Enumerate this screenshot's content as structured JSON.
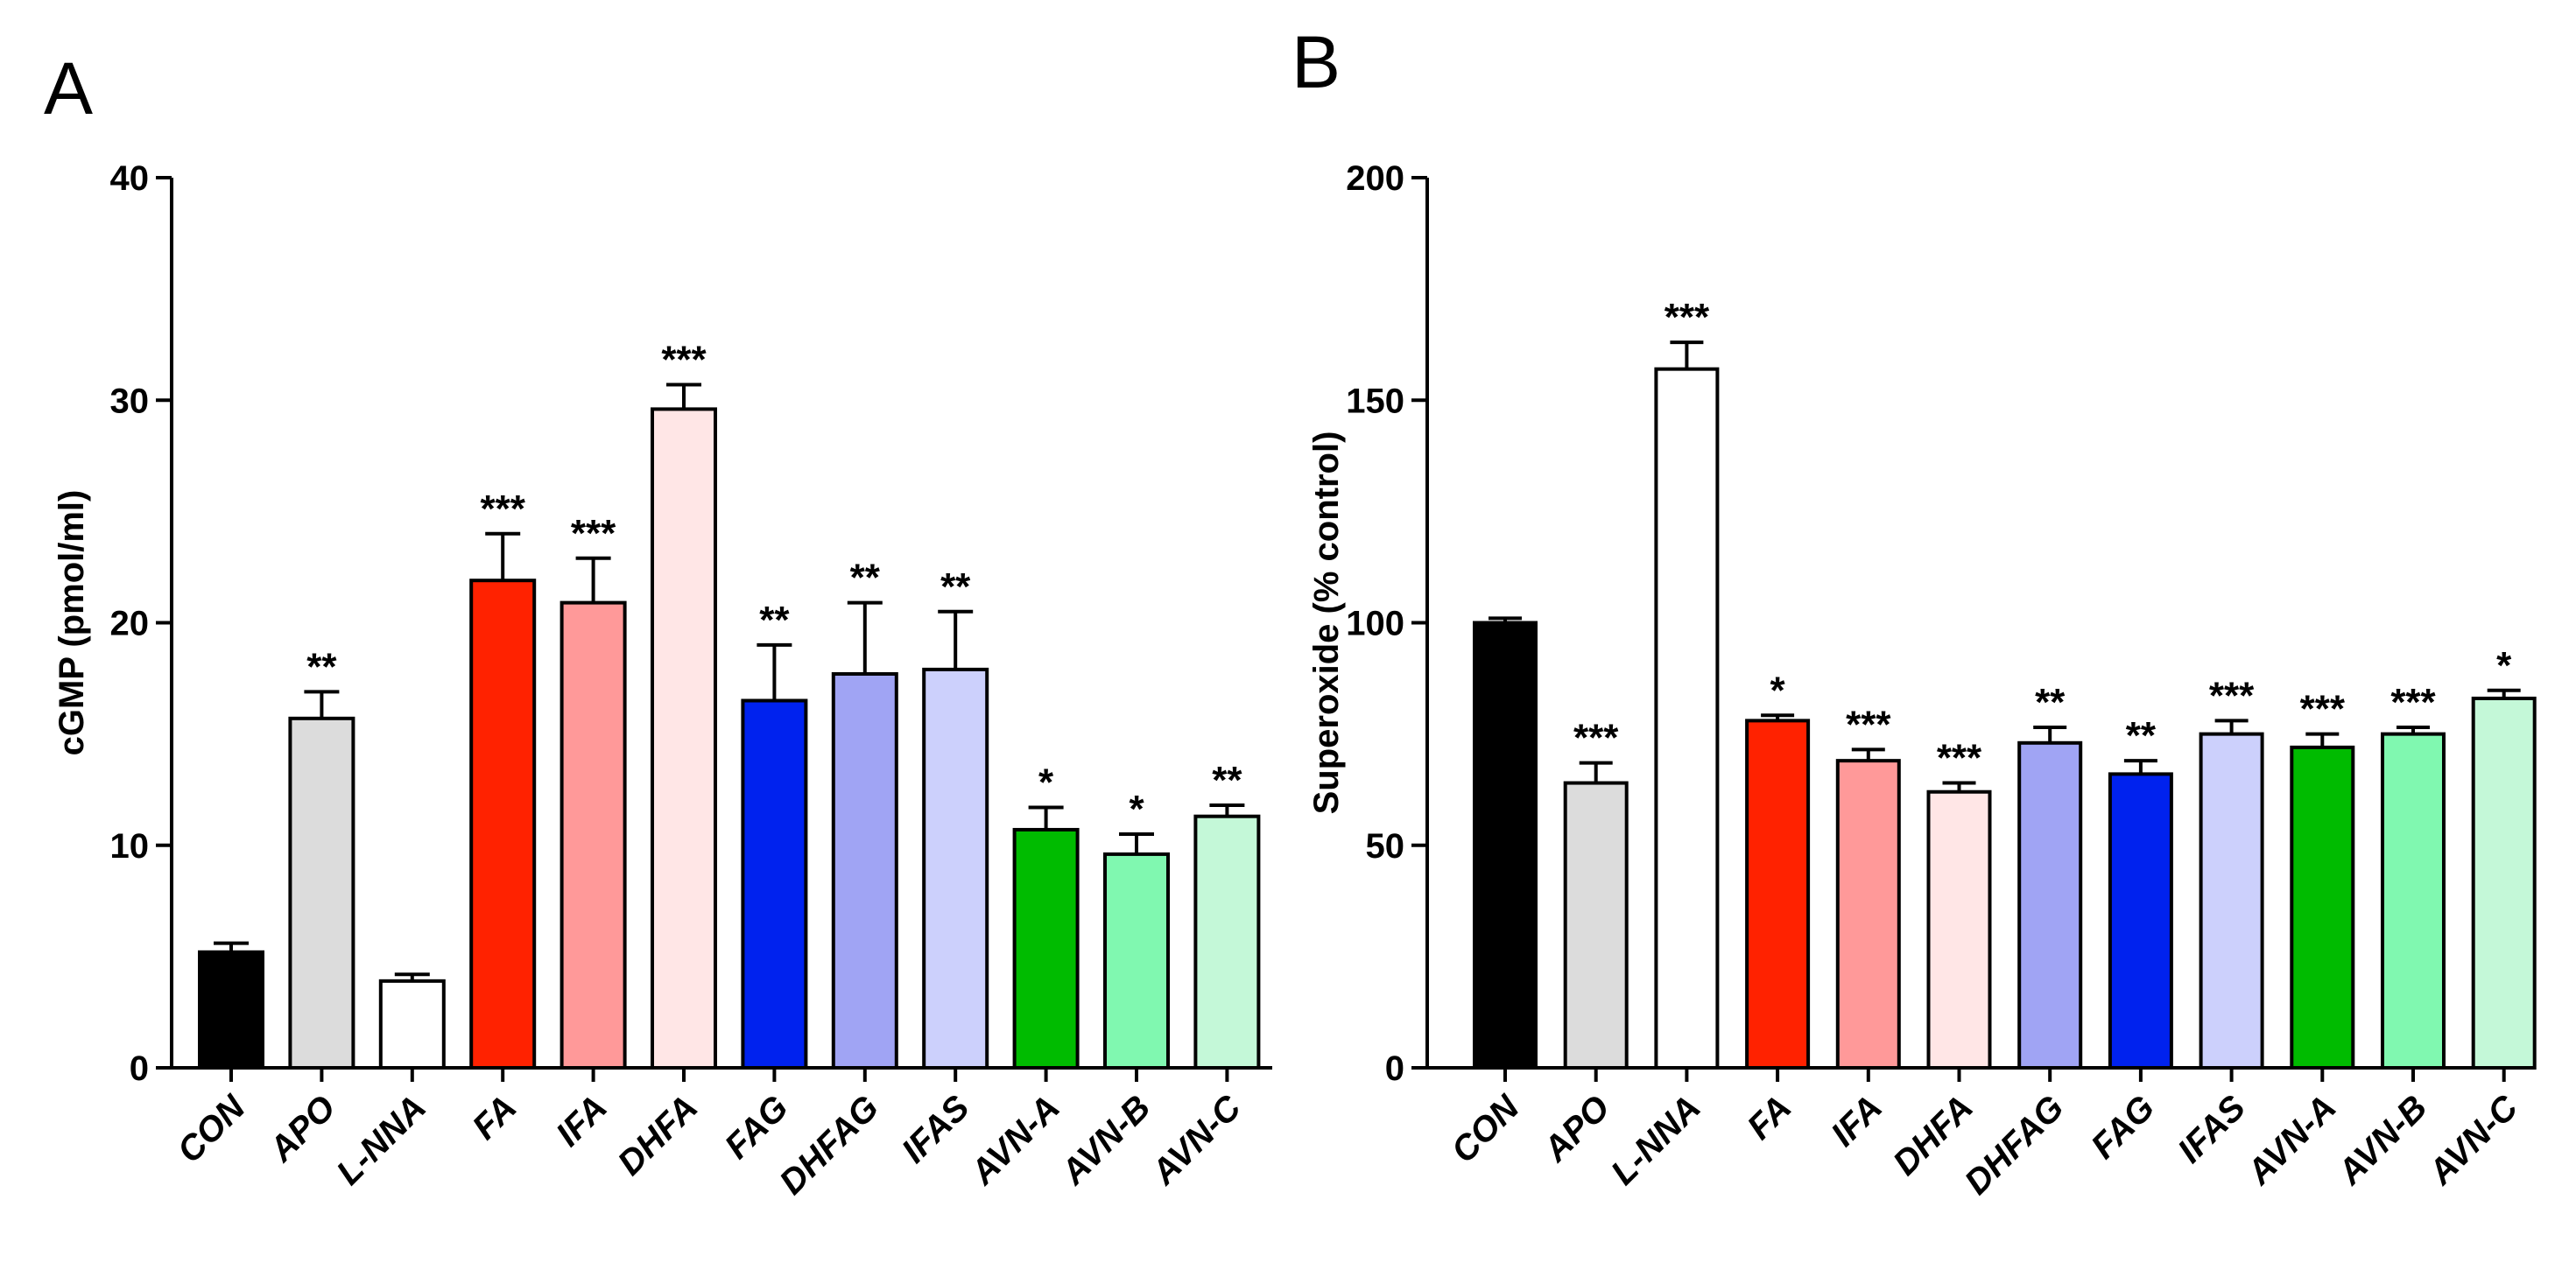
{
  "colors": {
    "CON": "#000000",
    "APO": "#dcdcdc",
    "L-NNA": "#ffffff",
    "FA": "#ff2200",
    "IFA": "#ff9999",
    "DHFA": "#ffe6e6",
    "FAG": "#0022ee",
    "DHFAG": "#a0a4f4",
    "IFAS": "#ccd0fc",
    "AVN-A": "#00bb00",
    "AVN-B": "#80f8b0",
    "AVN-C": "#c4f8d8"
  },
  "chart_data": [
    {
      "panel": "A",
      "type": "bar",
      "title": "",
      "xlabel": "",
      "ylabel": "cGMP (pmol/ml)",
      "ylim": [
        0,
        40
      ],
      "yticks": [
        0,
        10,
        20,
        30,
        40
      ],
      "categories": [
        "CON",
        "APO",
        "L-NNA",
        "FA",
        "IFA",
        "DHFA",
        "FAG",
        "DHFAG",
        "IFAS",
        "AVN-A",
        "AVN-B",
        "AVN-C"
      ],
      "values": [
        5.2,
        15.7,
        3.9,
        21.9,
        20.9,
        29.6,
        16.5,
        17.7,
        17.9,
        10.7,
        9.6,
        11.3
      ],
      "errors": [
        0.4,
        1.2,
        0.3,
        2.1,
        2.0,
        1.1,
        2.5,
        3.2,
        2.6,
        1.0,
        0.9,
        0.5
      ],
      "significance": [
        "",
        "**",
        "",
        "***",
        "***",
        "***",
        "**",
        "**",
        "**",
        "*",
        "*",
        "**"
      ]
    },
    {
      "panel": "B",
      "type": "bar",
      "title": "",
      "xlabel": "",
      "ylabel": "Superoxide (% control)",
      "ylim": [
        0,
        200
      ],
      "yticks": [
        0,
        50,
        100,
        150,
        200
      ],
      "categories": [
        "CON",
        "APO",
        "L-NNA",
        "FA",
        "IFA",
        "DHFA",
        "DHFAG",
        "FAG",
        "IFAS",
        "AVN-A",
        "AVN-B",
        "AVN-C"
      ],
      "values": [
        100,
        64,
        157,
        78,
        69,
        62,
        73,
        66,
        75,
        72,
        75,
        83
      ],
      "errors": [
        1,
        4.5,
        6,
        1.2,
        2.5,
        2,
        3.5,
        3,
        3,
        3,
        1.5,
        1.8
      ],
      "significance": [
        "",
        "***",
        "***",
        "*",
        "***",
        "***",
        "**",
        "**",
        "***",
        "***",
        "***",
        "*"
      ]
    }
  ]
}
